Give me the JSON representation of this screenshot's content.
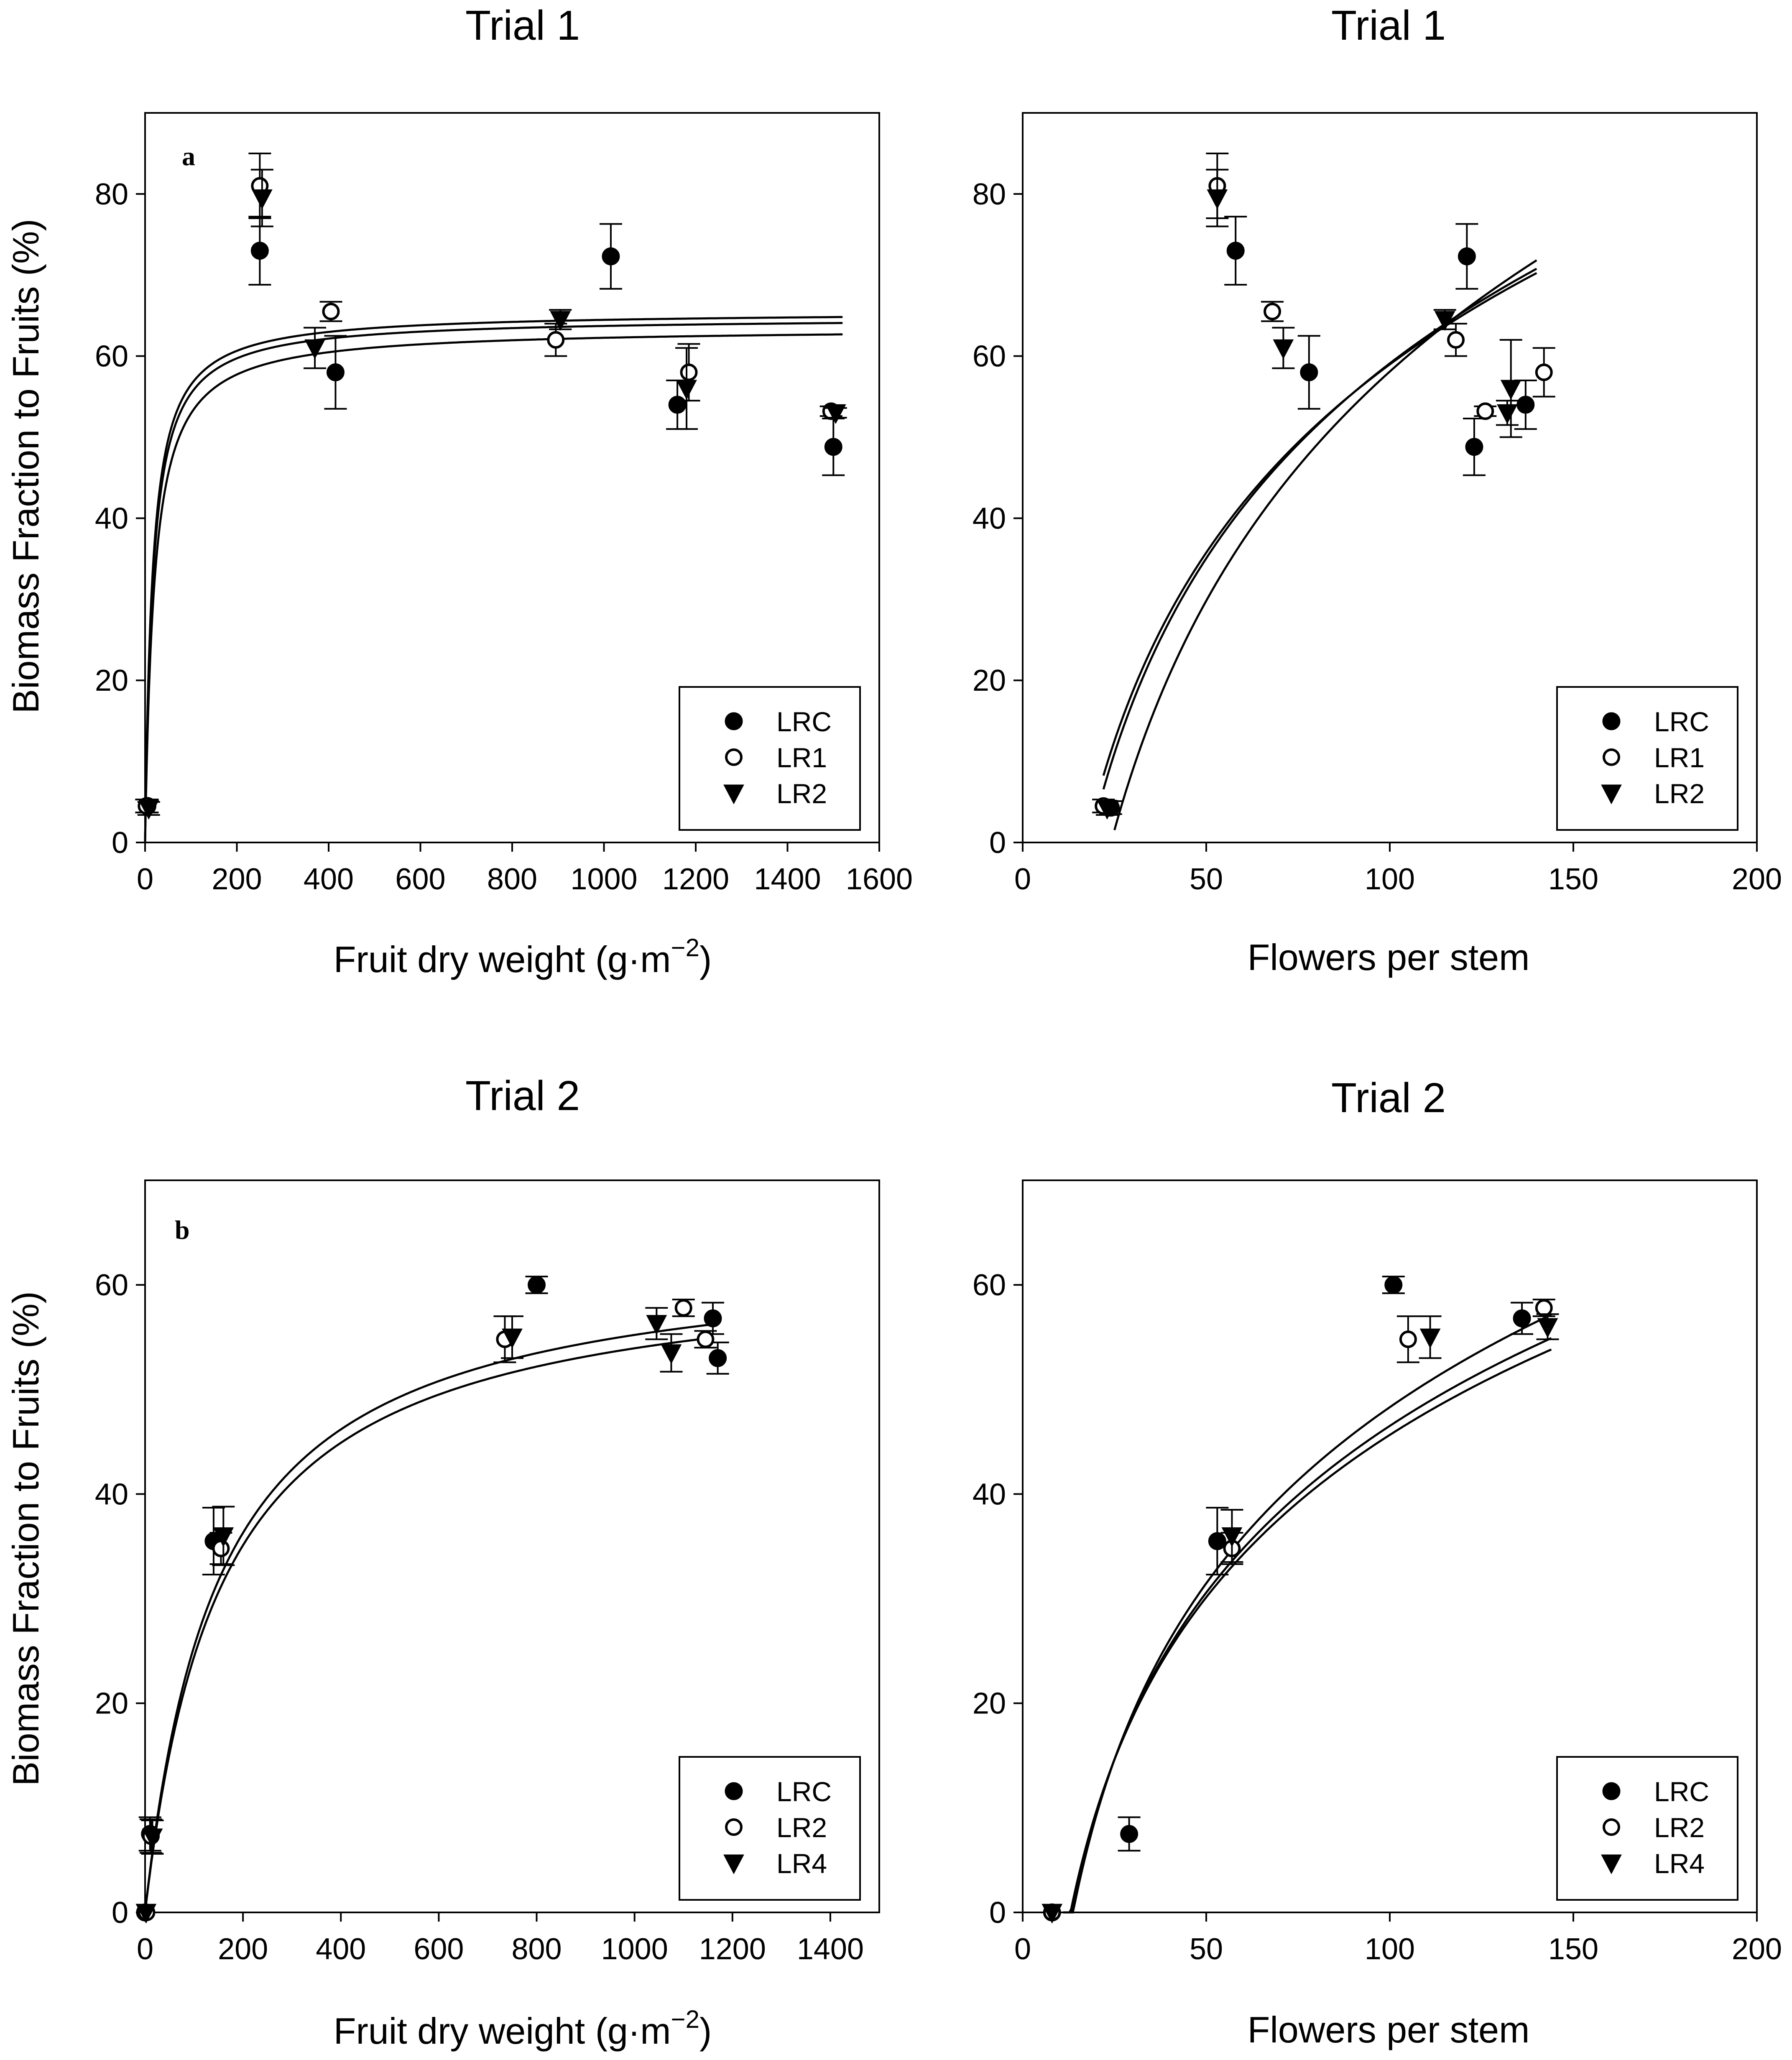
{
  "figure": {
    "ylabel": "Biomass Fraction to Fruits (%)"
  },
  "chart_data": [
    {
      "type": "scatter",
      "panel": "a",
      "title": "Trial 1",
      "xlabel": "Fruit dry weight (g·m",
      "xlabel_sup": "−2",
      "xlabel_close": ")",
      "ylabel": "Biomass Fraction to Fruits (%)",
      "xlim": [
        0,
        1600
      ],
      "ylim": [
        0,
        90
      ],
      "xticks": [
        0,
        200,
        400,
        600,
        800,
        1000,
        1200,
        1400,
        1600
      ],
      "yticks": [
        0,
        20,
        40,
        60,
        80
      ],
      "legend_position": "bottom-right",
      "series": [
        {
          "name": "LRC",
          "marker": "filled-circle",
          "x": [
            5,
            250,
            415,
            1015,
            1160,
            1500
          ],
          "y": [
            4.5,
            73,
            58,
            72.3,
            54,
            48.8
          ],
          "err": [
            0.8,
            4.2,
            4.5,
            4,
            3,
            3.5
          ]
        },
        {
          "name": "LR1",
          "marker": "open-circle",
          "x": [
            3,
            250,
            405,
            895,
            1185,
            1495
          ],
          "y": [
            4.5,
            81,
            65.5,
            62,
            58,
            53.2
          ],
          "err": [
            0.8,
            4,
            1.2,
            2,
            3.5,
            0.6
          ]
        },
        {
          "name": "LR2",
          "marker": "filled-triangle-down",
          "x": [
            8,
            255,
            370,
            905,
            1180,
            1505
          ],
          "y": [
            4.2,
            79.5,
            61,
            64.5,
            56,
            53
          ],
          "err": [
            0.8,
            3.5,
            2.5,
            1.2,
            5,
            0.6
          ]
        }
      ],
      "curves": [
        {
          "form": "hyperbolic",
          "asymptote": 65.5,
          "half": 16
        },
        {
          "form": "hyperbolic",
          "asymptote": 64.8,
          "half": 17
        },
        {
          "form": "hyperbolic",
          "asymptote": 63.5,
          "half": 20
        }
      ]
    },
    {
      "type": "scatter",
      "panel": "",
      "title": "Trial 1",
      "xlabel": "Flowers per stem",
      "ylabel": "",
      "xlim": [
        0,
        200
      ],
      "ylim": [
        0,
        90
      ],
      "xticks": [
        0,
        50,
        100,
        150,
        200
      ],
      "yticks": [
        0,
        20,
        40,
        60,
        80
      ],
      "legend_position": "bottom-right",
      "series": [
        {
          "name": "LRC",
          "marker": "filled-circle",
          "x": [
            24,
            58,
            78,
            121,
            123,
            137
          ],
          "y": [
            4.3,
            73,
            58,
            72.3,
            48.8,
            54
          ],
          "err": [
            0.8,
            4.2,
            4.5,
            4,
            3.5,
            3
          ]
        },
        {
          "name": "LR1",
          "marker": "open-circle",
          "x": [
            22,
            53,
            68,
            118,
            126,
            142
          ],
          "y": [
            4.5,
            81,
            65.5,
            62,
            53.2,
            58
          ],
          "err": [
            0.8,
            4,
            1.2,
            2,
            0.6,
            3
          ]
        },
        {
          "name": "LR2",
          "marker": "filled-triangle-down",
          "x": [
            23,
            53,
            71,
            115,
            132,
            133
          ],
          "y": [
            4.2,
            79.5,
            61,
            64.5,
            53,
            56
          ],
          "err": [
            0.8,
            3.5,
            2.5,
            1.2,
            1.5,
            6
          ]
        }
      ],
      "curves": [
        {
          "form": "log",
          "a": -100.7,
          "b": 34.7,
          "x0": 22,
          "x1": 140
        },
        {
          "form": "log",
          "a": -95.3,
          "b": 33.5,
          "x0": 22,
          "x1": 140
        },
        {
          "form": "log",
          "a": -129.8,
          "b": 40.8,
          "x0": 25,
          "x1": 140
        }
      ]
    },
    {
      "type": "scatter",
      "panel": "b",
      "title": "Trial 2",
      "xlabel": "Fruit dry weight (g·m",
      "xlabel_sup": "−2",
      "xlabel_close": ")",
      "ylabel": "Biomass Fraction to Fruits (%)",
      "xlim": [
        0,
        1500
      ],
      "ylim": [
        0,
        70
      ],
      "xticks": [
        0,
        200,
        400,
        600,
        800,
        1000,
        1200,
        1400
      ],
      "yticks": [
        0,
        20,
        40,
        60
      ],
      "legend_position": "bottom-right",
      "series": [
        {
          "name": "LRC",
          "marker": "filled-circle",
          "x": [
            0,
            10,
            140,
            800,
            1160,
            1170
          ],
          "y": [
            0,
            7.5,
            35.5,
            60,
            56.8,
            53
          ],
          "err": [
            0,
            1.6,
            3.2,
            0.8,
            1.5,
            1.5
          ]
        },
        {
          "name": "LR2",
          "marker": "open-circle",
          "x": [
            3,
            12,
            155,
            735,
            1100,
            1145
          ],
          "y": [
            0,
            7.3,
            34.8,
            54.8,
            57.8,
            54.8
          ],
          "err": [
            0,
            1.6,
            1.5,
            2.2,
            0.8,
            0.8
          ]
        },
        {
          "name": "LR4",
          "marker": "filled-triangle-down",
          "x": [
            2,
            15,
            160,
            750,
            1045,
            1075
          ],
          "y": [
            0,
            7.2,
            36,
            55,
            56.3,
            53.5
          ],
          "err": [
            0,
            1.6,
            2.8,
            2,
            1.5,
            1.8
          ]
        }
      ],
      "curves": [
        {
          "form": "hyperbolic",
          "asymptote": 63.5,
          "half": 150,
          "x1": 1150
        },
        {
          "form": "hyperbolic",
          "asymptote": 62.3,
          "half": 155,
          "x1": 1150
        }
      ]
    },
    {
      "type": "scatter",
      "panel": "",
      "title": "Trial 2",
      "xlabel": "Flowers per stem",
      "ylabel": "",
      "xlim": [
        0,
        200
      ],
      "ylim": [
        0,
        70
      ],
      "xticks": [
        0,
        50,
        100,
        150,
        200
      ],
      "yticks": [
        0,
        20,
        40,
        60
      ],
      "legend_position": "bottom-right",
      "series": [
        {
          "name": "LRC",
          "marker": "filled-circle",
          "x": [
            8,
            29,
            53,
            101,
            136
          ],
          "y": [
            0,
            7.5,
            35.5,
            60,
            56.8
          ],
          "err": [
            0,
            1.6,
            3.2,
            0.8,
            1.5
          ]
        },
        {
          "name": "LR2",
          "marker": "open-circle",
          "x": [
            8,
            57,
            105,
            142
          ],
          "y": [
            0,
            34.8,
            54.8,
            57.8
          ],
          "err": [
            0,
            1.5,
            2.2,
            0.8
          ]
        },
        {
          "name": "LR4",
          "marker": "filled-triangle-down",
          "x": [
            8,
            57,
            111,
            143
          ],
          "y": [
            0,
            36,
            55,
            56
          ],
          "err": [
            0,
            2.5,
            2,
            1.2
          ]
        }
      ],
      "curves": [
        {
          "form": "log",
          "a": -63.6,
          "b": 24.3,
          "x0": 11,
          "x1": 144
        },
        {
          "form": "log",
          "a": -59.4,
          "b": 23,
          "x0": 11,
          "x1": 144
        },
        {
          "form": "log",
          "a": -57.5,
          "b": 22.4,
          "x0": 11,
          "x1": 144
        }
      ]
    }
  ]
}
